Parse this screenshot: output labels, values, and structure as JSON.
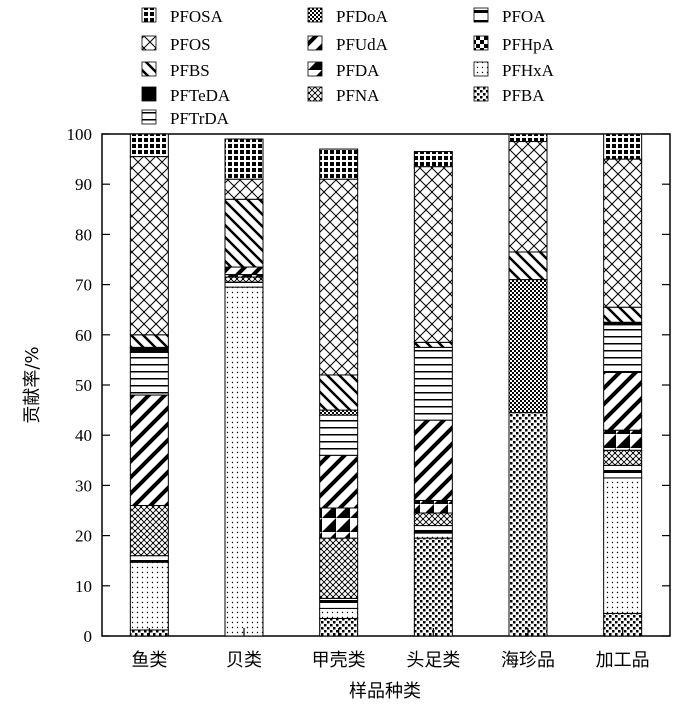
{
  "chart_data": {
    "type": "bar",
    "stacked": true,
    "xlabel": "样品种类",
    "ylabel": "贡献率/%",
    "ylim": [
      0,
      100
    ],
    "yticks": [
      "0",
      "10",
      "20",
      "30",
      "40",
      "50",
      "60",
      "70",
      "80",
      "90",
      "100"
    ],
    "categories": [
      "鱼类",
      "贝类",
      "甲壳类",
      "头足类",
      "海珍品",
      "加工品"
    ],
    "legend": [
      "PFOSA",
      "PFDoA",
      "PFOA",
      "PFOS",
      "PFUdA",
      "PFHpA",
      "PFBS",
      "PFDA",
      "PFHxA",
      "PFTeDA",
      "PFNA",
      "PFBA",
      "PFTrDA"
    ],
    "legend_position": "top",
    "series": [
      {
        "name": "PFBA",
        "values": [
          1.2,
          0.0,
          3.5,
          19.5,
          44.5,
          4.5
        ]
      },
      {
        "name": "PFHxA",
        "values": [
          13.5,
          69.5,
          2.0,
          1.0,
          0.0,
          27.0
        ]
      },
      {
        "name": "PFHpA",
        "values": [
          0.0,
          0.0,
          0.0,
          0.0,
          0.0,
          0.0
        ]
      },
      {
        "name": "PFOA",
        "values": [
          1.3,
          1.0,
          2.0,
          1.5,
          0.0,
          2.5
        ]
      },
      {
        "name": "PFNA",
        "values": [
          10.0,
          1.0,
          12.0,
          2.5,
          0.0,
          3.0
        ]
      },
      {
        "name": "PFDA",
        "values": [
          0.0,
          0.5,
          6.0,
          2.5,
          0.0,
          4.0
        ]
      },
      {
        "name": "PFUdA",
        "values": [
          22.0,
          1.5,
          10.5,
          16.0,
          0.0,
          11.5
        ]
      },
      {
        "name": "PFTrDA",
        "values": [
          8.5,
          0.0,
          8.0,
          14.5,
          0.0,
          9.5
        ]
      },
      {
        "name": "PFTeDA",
        "values": [
          1.0,
          0.0,
          0.0,
          0.0,
          0.0,
          0.5
        ]
      },
      {
        "name": "PFDoA",
        "values": [
          0.0,
          0.0,
          1.0,
          0.0,
          26.5,
          0.0
        ]
      },
      {
        "name": "PFBS",
        "values": [
          2.5,
          13.5,
          7.0,
          1.0,
          5.5,
          3.0
        ]
      },
      {
        "name": "PFOS",
        "values": [
          35.5,
          4.0,
          39.0,
          35.0,
          22.0,
          29.5
        ]
      },
      {
        "name": "PFOSA",
        "values": [
          4.5,
          8.0,
          6.0,
          3.0,
          1.5,
          5.0
        ]
      }
    ]
  }
}
